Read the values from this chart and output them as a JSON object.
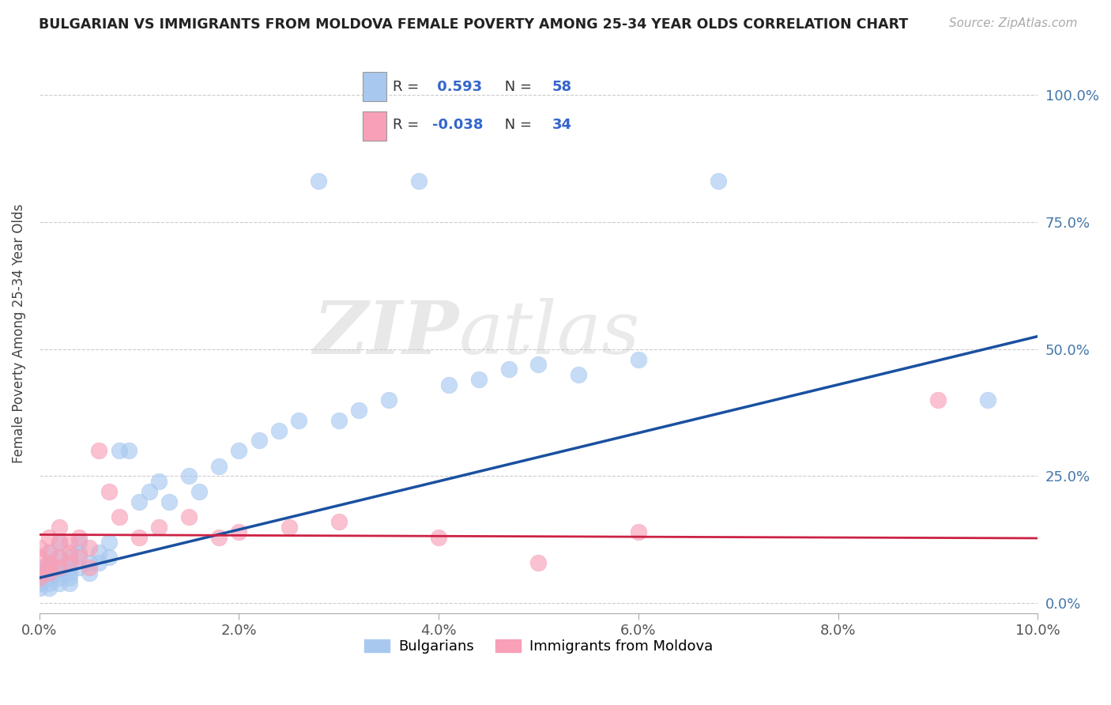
{
  "title": "BULGARIAN VS IMMIGRANTS FROM MOLDOVA FEMALE POVERTY AMONG 25-34 YEAR OLDS CORRELATION CHART",
  "source": "Source: ZipAtlas.com",
  "ylabel": "Female Poverty Among 25-34 Year Olds",
  "watermark_zip": "ZIP",
  "watermark_atlas": "atlas",
  "xlim": [
    0.0,
    0.1
  ],
  "ylim": [
    -0.02,
    1.08
  ],
  "yticks": [
    0.0,
    0.25,
    0.5,
    0.75,
    1.0
  ],
  "ytick_labels": [
    "0.0%",
    "25.0%",
    "50.0%",
    "75.0%",
    "100.0%"
  ],
  "xticks": [
    0.0,
    0.02,
    0.04,
    0.06,
    0.08,
    0.1
  ],
  "xtick_labels": [
    "0.0%",
    "2.0%",
    "4.0%",
    "6.0%",
    "8.0%",
    "10.0%"
  ],
  "legend_entries": [
    "Bulgarians",
    "Immigrants from Moldova"
  ],
  "bulgarian_color": "#a8c8f0",
  "bulgarian_line_color": "#1a50a0",
  "moldovan_color": "#f8a0b8",
  "moldovan_line_color": "#cc2244",
  "R_bulgarian": 0.593,
  "N_bulgarian": 58,
  "R_moldovan": -0.038,
  "N_moldovan": 34,
  "bulgarian_x": [
    0.0,
    0.0,
    0.0,
    0.0,
    0.0,
    0.001,
    0.001,
    0.001,
    0.001,
    0.001,
    0.001,
    0.001,
    0.002,
    0.002,
    0.002,
    0.002,
    0.002,
    0.002,
    0.003,
    0.003,
    0.003,
    0.003,
    0.003,
    0.004,
    0.004,
    0.004,
    0.005,
    0.005,
    0.006,
    0.006,
    0.007,
    0.007,
    0.008,
    0.009,
    0.01,
    0.011,
    0.012,
    0.013,
    0.015,
    0.016,
    0.018,
    0.02,
    0.022,
    0.024,
    0.026,
    0.028,
    0.03,
    0.032,
    0.035,
    0.038,
    0.041,
    0.044,
    0.047,
    0.05,
    0.054,
    0.06,
    0.068,
    0.095
  ],
  "bulgarian_y": [
    0.05,
    0.04,
    0.07,
    0.03,
    0.06,
    0.04,
    0.06,
    0.03,
    0.07,
    0.05,
    0.08,
    0.1,
    0.05,
    0.07,
    0.04,
    0.09,
    0.06,
    0.12,
    0.05,
    0.07,
    0.04,
    0.09,
    0.06,
    0.1,
    0.07,
    0.12,
    0.08,
    0.06,
    0.1,
    0.08,
    0.09,
    0.12,
    0.3,
    0.3,
    0.2,
    0.22,
    0.24,
    0.2,
    0.25,
    0.22,
    0.27,
    0.3,
    0.32,
    0.34,
    0.36,
    0.83,
    0.36,
    0.38,
    0.4,
    0.83,
    0.43,
    0.44,
    0.46,
    0.47,
    0.45,
    0.48,
    0.83,
    0.4
  ],
  "moldovan_x": [
    0.0,
    0.0,
    0.0,
    0.0,
    0.001,
    0.001,
    0.001,
    0.001,
    0.001,
    0.002,
    0.002,
    0.002,
    0.002,
    0.003,
    0.003,
    0.003,
    0.004,
    0.004,
    0.005,
    0.005,
    0.006,
    0.007,
    0.008,
    0.01,
    0.012,
    0.015,
    0.018,
    0.02,
    0.025,
    0.03,
    0.04,
    0.05,
    0.06,
    0.09
  ],
  "moldovan_y": [
    0.06,
    0.09,
    0.05,
    0.11,
    0.07,
    0.1,
    0.06,
    0.13,
    0.08,
    0.07,
    0.12,
    0.09,
    0.15,
    0.08,
    0.12,
    0.1,
    0.13,
    0.09,
    0.11,
    0.07,
    0.3,
    0.22,
    0.17,
    0.13,
    0.15,
    0.17,
    0.13,
    0.14,
    0.15,
    0.16,
    0.13,
    0.08,
    0.14,
    0.4
  ],
  "blue_regression_x0": 0.0,
  "blue_regression_y0": 0.05,
  "blue_regression_x1": 0.1,
  "blue_regression_y1": 0.525,
  "pink_regression_x0": 0.0,
  "pink_regression_y0": 0.135,
  "pink_regression_x1": 0.1,
  "pink_regression_y1": 0.128
}
